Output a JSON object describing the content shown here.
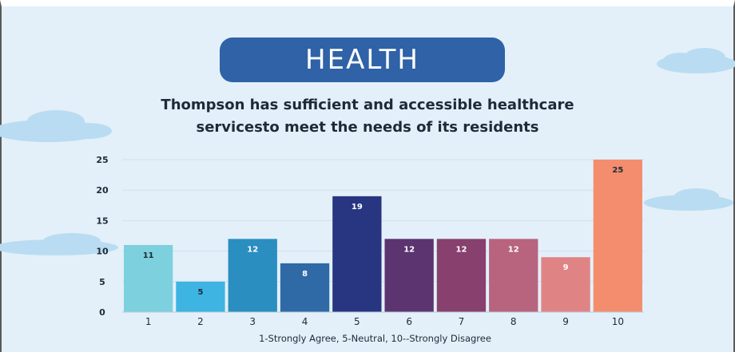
{
  "header": {
    "title": "HEALTH"
  },
  "chart_data": {
    "type": "bar",
    "title_lines": [
      "Thompson has sufficient and accessible healthcare",
      "servicesto meet the needs of its residents"
    ],
    "categories": [
      "1",
      "2",
      "3",
      "4",
      "5",
      "6",
      "7",
      "8",
      "9",
      "10"
    ],
    "values": [
      11,
      5,
      12,
      8,
      19,
      12,
      12,
      12,
      9,
      25
    ],
    "data_labels": [
      "11",
      "5",
      "12",
      "8",
      "19",
      "12",
      "12",
      "12",
      "9",
      "25"
    ],
    "colors": [
      "#7dd0dd",
      "#3eb4e2",
      "#2b8ec0",
      "#2f69a6",
      "#283580",
      "#5c3470",
      "#88406e",
      "#b8647f",
      "#e08385",
      "#f38d6e"
    ],
    "label_colors": [
      "#1e2a38",
      "#1e2a38",
      "#ffffff",
      "#ffffff",
      "#ffffff",
      "#ffffff",
      "#ffffff",
      "#ffffff",
      "#ffffff",
      "#1e2a38"
    ],
    "yticks": [
      0,
      5,
      10,
      15,
      20,
      25
    ],
    "ylim": [
      0,
      25
    ],
    "xlabel": "1-Strongly Agree, 5-Neutral, 10--Strongly Disagree",
    "ylabel": "",
    "grid": true,
    "legend": "none"
  }
}
